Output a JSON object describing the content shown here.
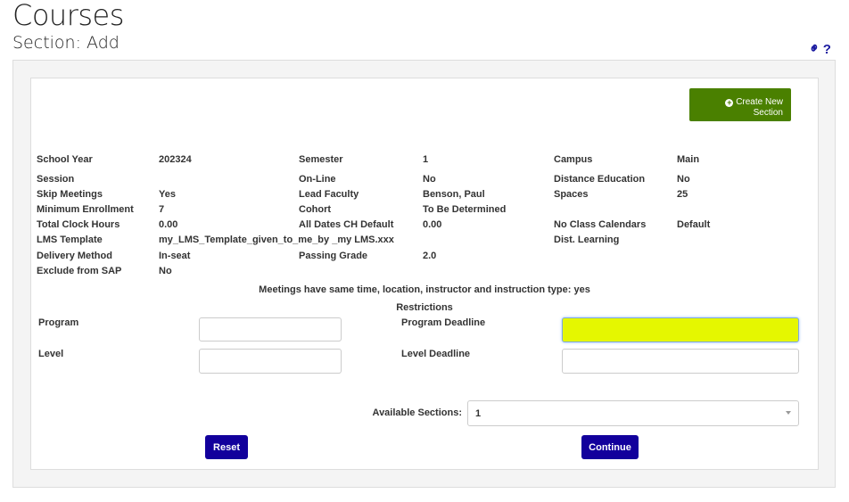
{
  "header": {
    "title": "Courses",
    "subtitle": "Section: Add",
    "link_icon": "link-icon",
    "help_label": "?"
  },
  "create_button": {
    "label_line1": "Create New",
    "label_line2": "Section",
    "icon": "plus-circle-icon",
    "color": "#4a8000"
  },
  "details": [
    [
      {
        "label": "School Year",
        "value": "202324"
      },
      {
        "label": "Semester",
        "value": "1"
      },
      {
        "label": "Campus",
        "value": "Main"
      }
    ],
    [
      {
        "label": "Session",
        "value": ""
      },
      {
        "label": "On-Line",
        "value": "No"
      },
      {
        "label": "Distance Education",
        "value": "No"
      }
    ],
    [
      {
        "label": "Skip Meetings",
        "value": "Yes"
      },
      {
        "label": "Lead Faculty",
        "value": "Benson, Paul"
      },
      {
        "label": "Spaces",
        "value": "25"
      }
    ],
    [
      {
        "label": "Minimum Enrollment",
        "value": "7"
      },
      {
        "label": "Cohort",
        "value": "To Be Determined"
      },
      null
    ],
    [
      {
        "label": "Total Clock Hours",
        "value": "0.00"
      },
      {
        "label": "All Dates CH Default",
        "value": "0.00"
      },
      {
        "label": "No Class Calendars",
        "value": "Default"
      }
    ],
    [
      {
        "label": "LMS Template",
        "value": "my_LMS_Template_given_to_me_by _my LMS.xxx"
      },
      null,
      {
        "label": "Dist. Learning",
        "value": ""
      }
    ],
    [
      {
        "label": "Delivery Method",
        "value": "In-seat"
      },
      {
        "label": "Passing Grade",
        "value": "2.0"
      },
      null
    ],
    [
      {
        "label": "Exclude from SAP",
        "value": "No"
      },
      null,
      null
    ]
  ],
  "meetings_note": "Meetings have same time, location, instructor and instruction type: yes",
  "restrictions": {
    "heading": "Restrictions",
    "program_label": "Program",
    "program_value": "",
    "program_deadline_label": "Program Deadline",
    "program_deadline_value": "",
    "level_label": "Level",
    "level_value": "",
    "level_deadline_label": "Level Deadline",
    "level_deadline_value": ""
  },
  "available_sections": {
    "label": "Available Sections:",
    "selected": "1"
  },
  "buttons": {
    "reset": "Reset",
    "continue": "Continue",
    "color": "#12009c"
  },
  "highlight_color": "#e5f700"
}
